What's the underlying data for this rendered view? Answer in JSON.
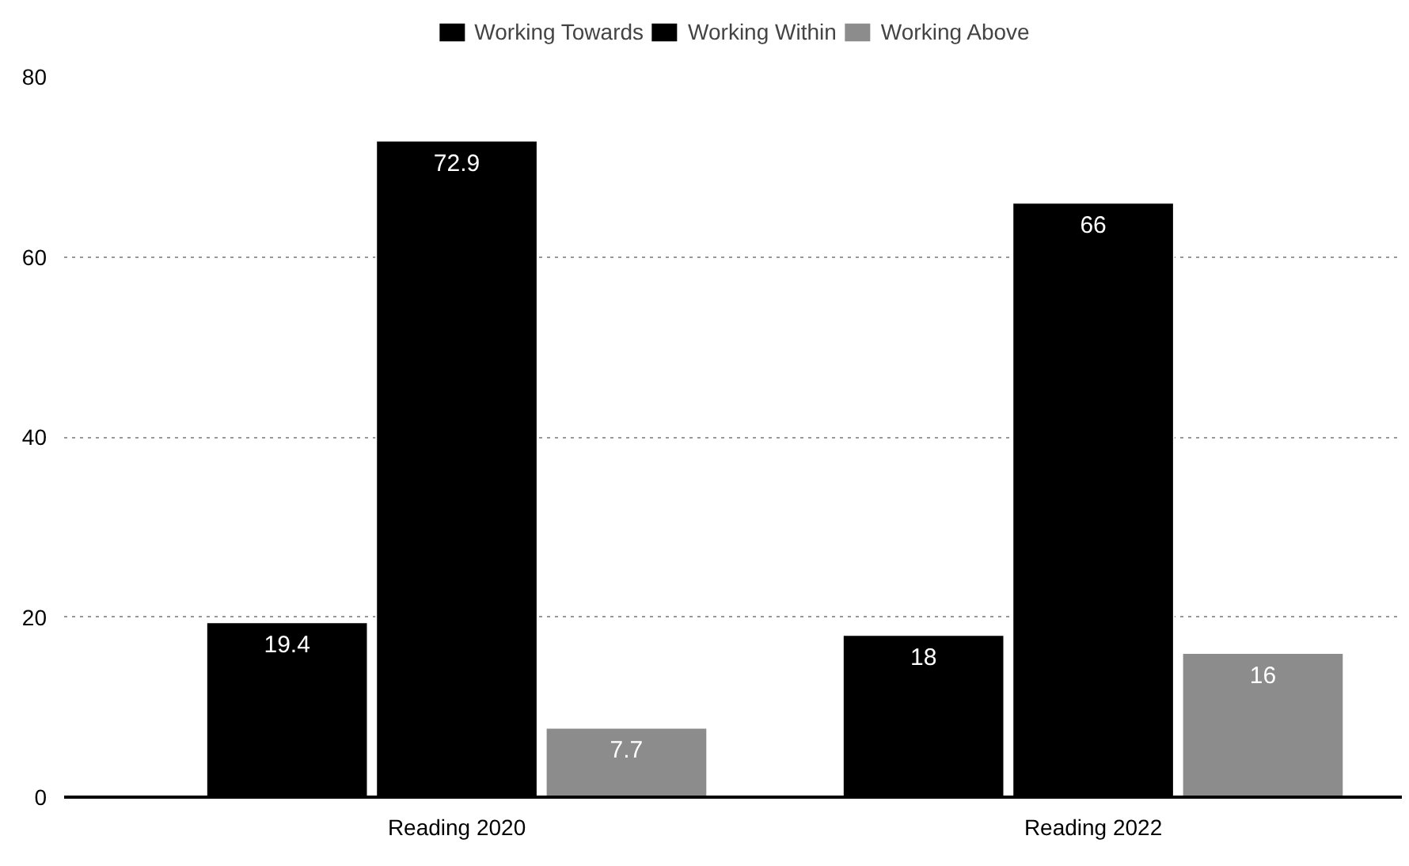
{
  "chart_data": {
    "type": "bar",
    "categories": [
      "Reading 2020",
      "Reading 2022"
    ],
    "series": [
      {
        "name": "Working Towards",
        "color": "#000000",
        "values": [
          19.4,
          18
        ]
      },
      {
        "name": "Working Within",
        "color": "#000000",
        "values": [
          72.9,
          66
        ]
      },
      {
        "name": "Working Above",
        "color": "#8c8c8c",
        "values": [
          7.7,
          16
        ]
      }
    ],
    "ylim": [
      0,
      80
    ],
    "yticks": [
      0,
      20,
      40,
      60,
      80
    ],
    "grid": "y",
    "legend": "top",
    "data_labels": true
  }
}
